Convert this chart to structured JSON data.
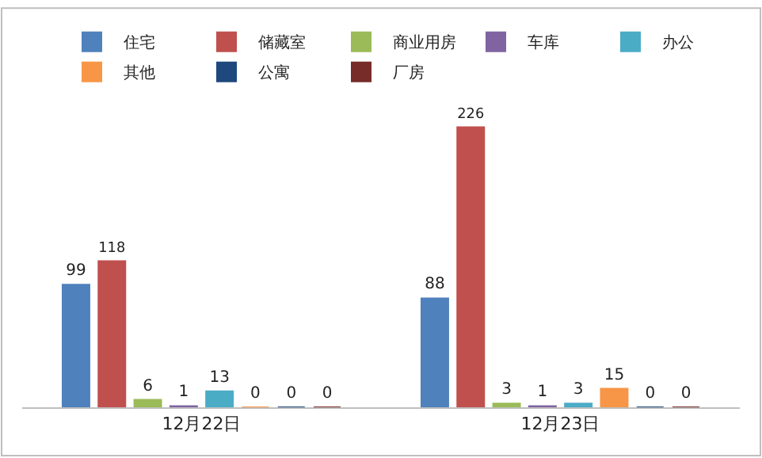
{
  "chart_data": {
    "type": "bar",
    "categories": [
      "12月22日",
      "12月23日"
    ],
    "series": [
      {
        "name": "住宅",
        "color": "#4f81bd",
        "values": [
          99,
          88
        ]
      },
      {
        "name": "储藏室",
        "color": "#c0504d",
        "values": [
          118,
          226
        ]
      },
      {
        "name": "商业用房",
        "color": "#9bbb59",
        "values": [
          6,
          3
        ]
      },
      {
        "name": "车库",
        "color": "#8064a2",
        "values": [
          1,
          1
        ]
      },
      {
        "name": "办公",
        "color": "#4bacc6",
        "values": [
          13,
          3
        ]
      },
      {
        "name": "其他",
        "color": "#f79646",
        "values": [
          0,
          15
        ]
      },
      {
        "name": "公寓",
        "color": "#1f497d",
        "values": [
          0,
          0
        ]
      },
      {
        "name": "厂房",
        "color": "#772c2a",
        "values": [
          0,
          0
        ]
      }
    ],
    "tick_labels": "x",
    "data_labels": true,
    "legend": "top"
  }
}
